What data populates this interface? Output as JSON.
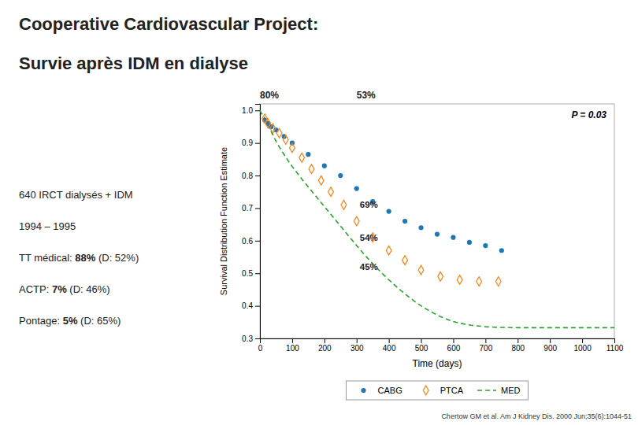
{
  "chart_data": {
    "type": "scatter",
    "title": "Cooperative Cardiovascular Project:",
    "subtitle": "Survie après IDM en dialyse",
    "x_label": "Time (days)",
    "y_label": "Survival Distribution Function Estimate",
    "xlim": [
      0,
      1100
    ],
    "ylim": [
      0.3,
      1.02
    ],
    "xticks": [
      0,
      100,
      200,
      300,
      400,
      500,
      600,
      700,
      800,
      900,
      1000,
      1100
    ],
    "yticks": [
      0.3,
      0.4,
      0.5,
      0.6,
      0.7,
      0.8,
      0.9,
      {
        "value": 1.0,
        "label": "1.0"
      }
    ],
    "grid": false,
    "legend": "bottom",
    "series": [
      {
        "name": "CABG",
        "type": "scatter",
        "marker": "circle",
        "x": [
          15,
          25,
          35,
          50,
          75,
          100,
          150,
          200,
          250,
          300,
          350,
          400,
          450,
          500,
          550,
          600,
          650,
          700,
          750
        ],
        "values": [
          0.97,
          0.96,
          0.95,
          0.94,
          0.92,
          0.9,
          0.865,
          0.83,
          0.8,
          0.76,
          0.72,
          0.69,
          0.66,
          0.64,
          0.62,
          0.61,
          0.595,
          0.585,
          0.57
        ]
      },
      {
        "name": "PTCA",
        "type": "scatter",
        "marker": "diamond",
        "x": [
          15,
          25,
          40,
          60,
          80,
          100,
          130,
          160,
          190,
          220,
          260,
          300,
          350,
          400,
          450,
          500,
          560,
          620,
          680,
          740
        ],
        "values": [
          0.975,
          0.96,
          0.945,
          0.93,
          0.91,
          0.885,
          0.855,
          0.82,
          0.785,
          0.75,
          0.71,
          0.66,
          0.61,
          0.57,
          0.54,
          0.51,
          0.49,
          0.48,
          0.475,
          0.475
        ]
      },
      {
        "name": "MED",
        "type": "line",
        "line_style": "dashed",
        "x": [
          0,
          5,
          10,
          15,
          20,
          25,
          30,
          35,
          40,
          50,
          60,
          70,
          80,
          90,
          100,
          110,
          120,
          130,
          140,
          150,
          160,
          170,
          180,
          190,
          200,
          210,
          220,
          230,
          240,
          250,
          260,
          270,
          280,
          290,
          300,
          320,
          340,
          360,
          380,
          400,
          420,
          440,
          460,
          480,
          500,
          520,
          540,
          560,
          580,
          600,
          620,
          640,
          660,
          680,
          700,
          720,
          740,
          760,
          800,
          850,
          900,
          950,
          1000,
          1050,
          1100
        ],
        "values": [
          1.0,
          0.99,
          0.985,
          0.975,
          0.965,
          0.955,
          0.945,
          0.935,
          0.925,
          0.905,
          0.888,
          0.872,
          0.857,
          0.842,
          0.828,
          0.815,
          0.802,
          0.789,
          0.777,
          0.765,
          0.753,
          0.741,
          0.729,
          0.717,
          0.705,
          0.693,
          0.681,
          0.669,
          0.657,
          0.645,
          0.633,
          0.621,
          0.609,
          0.597,
          0.585,
          0.562,
          0.54,
          0.519,
          0.499,
          0.48,
          0.462,
          0.445,
          0.429,
          0.414,
          0.4,
          0.388,
          0.377,
          0.367,
          0.359,
          0.352,
          0.347,
          0.343,
          0.34,
          0.338,
          0.336,
          0.335,
          0.334,
          0.334,
          0.333,
          0.333,
          0.333,
          0.333,
          0.333,
          0.333,
          0.333
        ]
      }
    ],
    "note": "P = 0.03",
    "annotations": [
      {
        "text": "69%",
        "x": 310,
        "y": 0.7
      },
      {
        "text": "54%",
        "x": 310,
        "y": 0.6
      },
      {
        "text": "45%",
        "x": 310,
        "y": 0.51
      }
    ],
    "top_annotations": [
      {
        "text": "80%",
        "x": 0
      },
      {
        "text": "53%",
        "x": 300
      }
    ],
    "left_text": [
      [
        "640 IRCT dialysés + IDM"
      ],
      [
        "1994 – 1995"
      ],
      [
        "TT médical: ",
        "88%",
        " (D: 52%)"
      ],
      [
        "ACTP: ",
        "7%",
        " (D: 46%)"
      ],
      [
        "Pontage: ",
        "5%",
        " (D: 65%)"
      ]
    ],
    "source": "Chertow GM et al. Am J Kidney Dis. 2000 Jun;35(6):1044-51"
  }
}
